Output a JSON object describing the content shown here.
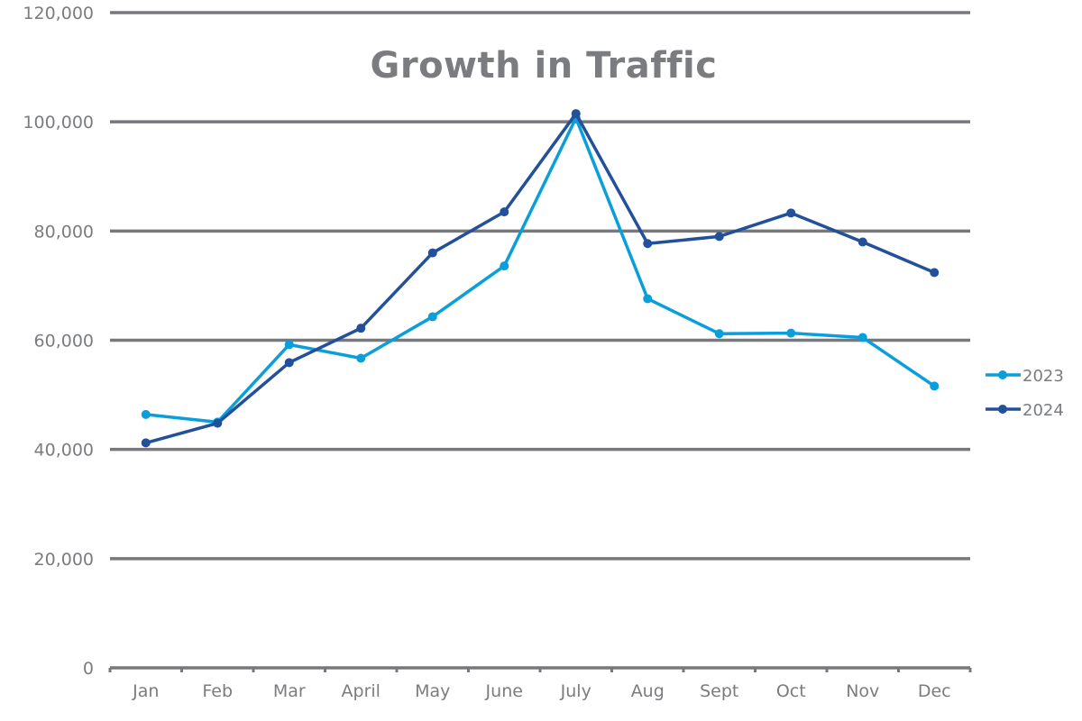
{
  "chart_data": {
    "type": "line",
    "title": "Growth in Traffic",
    "xlabel": "",
    "ylabel": "",
    "categories": [
      "Jan",
      "Feb",
      "Mar",
      "April",
      "May",
      "June",
      "July",
      "Aug",
      "Sept",
      "Oct",
      "Nov",
      "Dec"
    ],
    "series": [
      {
        "name": "2023",
        "color": "#0a9fdb",
        "values": [
          46400,
          45000,
          59200,
          56700,
          64300,
          73600,
          100700,
          67600,
          61200,
          61300,
          60500,
          51600
        ]
      },
      {
        "name": "2024",
        "color": "#22509a",
        "values": [
          41200,
          44800,
          55900,
          62200,
          76000,
          83500,
          101500,
          77700,
          79000,
          83300,
          78000,
          72400
        ]
      }
    ],
    "ylim": [
      0,
      120000
    ],
    "yticks": [
      0,
      20000,
      40000,
      60000,
      80000,
      100000,
      120000
    ],
    "ytick_labels": [
      "0",
      "20,000",
      "40,000",
      "60,000",
      "80,000",
      "100,000",
      "120,000"
    ],
    "grid": true,
    "legend_position": "right",
    "gridline_color": "#76787b"
  }
}
